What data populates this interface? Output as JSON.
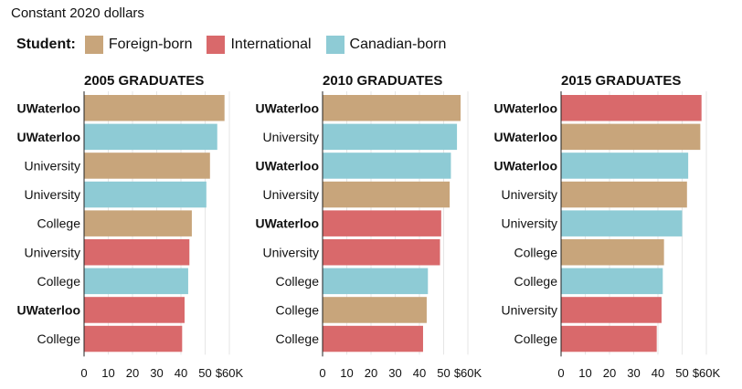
{
  "subtitle": "Constant 2020 dollars",
  "legend": {
    "title": "Student:",
    "items": [
      {
        "label": "Foreign-born",
        "color": "#c8a57b"
      },
      {
        "label": "International",
        "color": "#d9696b"
      },
      {
        "label": "Canadian-born",
        "color": "#8ecbd5"
      }
    ]
  },
  "chart_data": [
    {
      "type": "bar",
      "orientation": "horizontal",
      "title": "2005 GRADUATES",
      "xlim": [
        0,
        60
      ],
      "ticks": [
        "0",
        "10",
        "20",
        "30",
        "40",
        "50",
        "$60K"
      ],
      "categories": [
        "UWaterloo",
        "UWaterloo",
        "University",
        "University",
        "College",
        "University",
        "College",
        "UWaterloo",
        "College"
      ],
      "bold": [
        true,
        true,
        false,
        false,
        false,
        false,
        false,
        true,
        false
      ],
      "student": [
        "Foreign-born",
        "Canadian-born",
        "Foreign-born",
        "Canadian-born",
        "Foreign-born",
        "International",
        "Canadian-born",
        "International",
        "International"
      ],
      "values": [
        58,
        55,
        52,
        50.5,
        44.5,
        43.5,
        43,
        41.5,
        40.5
      ]
    },
    {
      "type": "bar",
      "orientation": "horizontal",
      "title": "2010 GRADUATES",
      "xlim": [
        0,
        60
      ],
      "ticks": [
        "0",
        "10",
        "20",
        "30",
        "40",
        "50",
        "$60K"
      ],
      "categories": [
        "UWaterloo",
        "University",
        "UWaterloo",
        "University",
        "UWaterloo",
        "University",
        "College",
        "College",
        "College"
      ],
      "bold": [
        true,
        false,
        true,
        false,
        true,
        false,
        false,
        false,
        false
      ],
      "student": [
        "Foreign-born",
        "Canadian-born",
        "Canadian-born",
        "Foreign-born",
        "International",
        "International",
        "Canadian-born",
        "Foreign-born",
        "International"
      ],
      "values": [
        57,
        55.5,
        53,
        52.5,
        49,
        48.5,
        43.5,
        43,
        41.5
      ]
    },
    {
      "type": "bar",
      "orientation": "horizontal",
      "title": "2015 GRADUATES",
      "xlim": [
        0,
        60
      ],
      "ticks": [
        "0",
        "10",
        "20",
        "30",
        "40",
        "50",
        "$60K"
      ],
      "categories": [
        "UWaterloo",
        "UWaterloo",
        "UWaterloo",
        "University",
        "University",
        "College",
        "College",
        "University",
        "College"
      ],
      "bold": [
        true,
        true,
        true,
        false,
        false,
        false,
        false,
        false,
        false
      ],
      "student": [
        "International",
        "Foreign-born",
        "Canadian-born",
        "Foreign-born",
        "Canadian-born",
        "Foreign-born",
        "Canadian-born",
        "International",
        "International"
      ],
      "values": [
        58,
        57.5,
        52.5,
        52,
        50,
        42.5,
        42,
        41.5,
        39.5
      ]
    }
  ]
}
